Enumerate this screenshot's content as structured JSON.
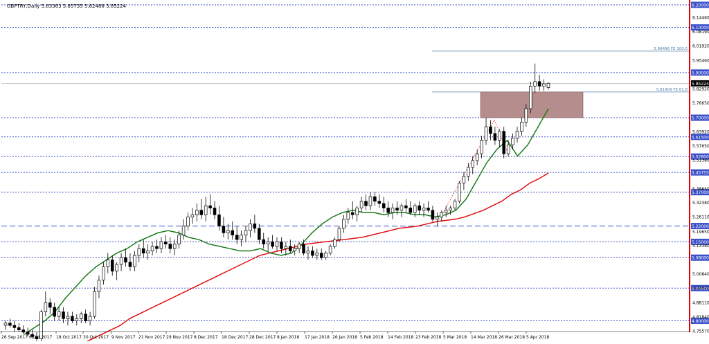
{
  "header": {
    "symbol_line": "GBPTRY,Daily  5.83363 5.85735 5.82488 5.85224"
  },
  "colors": {
    "bull_candle": "#ffffff",
    "bear_candle": "#000000",
    "candle_outline": "#000000",
    "ma_fast": "#1a7a1a",
    "ma_slow": "#e01010",
    "level_line": "#3a4fc8",
    "level_label_bg": "#3a4fc8",
    "box_fill": "#b58d8d",
    "fib_line": "#4a7fa8",
    "right_border": "#e00000"
  },
  "price_scale": {
    "labels": [
      "6.14460",
      "6.08190",
      "6.01920",
      "5.95460",
      "5.82920",
      "5.76650",
      "5.63920",
      "5.57650",
      "5.51380",
      "5.38650",
      "5.32380",
      "5.26110",
      "5.19650",
      "5.13380",
      "5.00840",
      "4.94570",
      "4.88110",
      "4.81840",
      "4.75570"
    ],
    "current_price": "5.85224"
  },
  "levels": [
    {
      "value": 6.2,
      "label": "6.20000"
    },
    {
      "value": 6.1,
      "label": "6.10000"
    },
    {
      "value": 5.9,
      "label": "5.90000"
    },
    {
      "value": 5.7,
      "label": "5.70000"
    },
    {
      "value": 5.615,
      "label": "5.61500"
    },
    {
      "value": 5.528,
      "label": "5.52800"
    },
    {
      "value": 5.45755,
      "label": "5.45755"
    },
    {
      "value": 5.37,
      "label": "5.37000"
    },
    {
      "value": 5.22,
      "label": "5.22000"
    },
    {
      "value": 5.15,
      "label": "5.15000"
    },
    {
      "value": 5.08,
      "label": "5.08000"
    },
    {
      "value": 4.945,
      "label": "4.94500"
    },
    {
      "value": 4.8,
      "label": "4.80000"
    }
  ],
  "fib_labels": [
    {
      "value": 5.99496,
      "label": "5.99496 FE 100.0"
    },
    {
      "value": 5.81409,
      "label": "5.81409 FE 61.8"
    }
  ],
  "time_labels": [
    "26 Sep 2017",
    "6 Oct 2017",
    "18 Oct 2017",
    "30 Oct 2017",
    "9 Nov 2017",
    "21 Nov 2017",
    "29 Nov 2017",
    "8 Dec 2017",
    "18 Dec 2017",
    "28 Dec 2017",
    "8 Jan 2018",
    "17 Jan 2018",
    "26 Jan 2018",
    "5 Feb 2018",
    "14 Feb 2018",
    "23 Feb 2018",
    "5 Mar 2018",
    "14 Mar 2018",
    "26 Mar 2018",
    "5 Apr 2018"
  ],
  "chart_data": {
    "type": "candlestick",
    "title": "GBPTRY,Daily",
    "ohlc_header": [
      5.83363,
      5.85735,
      5.82488,
      5.85224
    ],
    "ylim": [
      4.7557,
      6.2
    ],
    "x_labels": [
      "26 Sep 2017",
      "6 Oct 2017",
      "18 Oct 2017",
      "30 Oct 2017",
      "9 Nov 2017",
      "21 Nov 2017",
      "29 Nov 2017",
      "8 Dec 2017",
      "18 Dec 2017",
      "28 Dec 2017",
      "8 Jan 2018",
      "17 Jan 2018",
      "26 Jan 2018",
      "5 Feb 2018",
      "14 Feb 2018",
      "23 Feb 2018",
      "5 Mar 2018",
      "14 Mar 2018",
      "26 Mar 2018",
      "5 Apr 2018"
    ],
    "candles": [
      [
        4.78,
        4.8,
        4.76,
        4.79
      ],
      [
        4.79,
        4.81,
        4.77,
        4.78
      ],
      [
        4.78,
        4.8,
        4.75,
        4.77
      ],
      [
        4.77,
        4.79,
        4.75,
        4.76
      ],
      [
        4.76,
        4.78,
        4.74,
        4.75
      ],
      [
        4.75,
        4.77,
        4.73,
        4.74
      ],
      [
        4.74,
        4.76,
        4.72,
        4.73
      ],
      [
        4.73,
        4.75,
        4.71,
        4.72
      ],
      [
        4.72,
        4.85,
        4.71,
        4.84
      ],
      [
        4.84,
        4.93,
        4.82,
        4.88
      ],
      [
        4.88,
        4.9,
        4.83,
        4.86
      ],
      [
        4.86,
        4.88,
        4.8,
        4.82
      ],
      [
        4.82,
        4.86,
        4.8,
        4.84
      ],
      [
        4.84,
        4.86,
        4.79,
        4.81
      ],
      [
        4.81,
        4.84,
        4.78,
        4.82
      ],
      [
        4.82,
        4.84,
        4.79,
        4.8
      ],
      [
        4.8,
        4.83,
        4.78,
        4.81
      ],
      [
        4.81,
        4.84,
        4.79,
        4.83
      ],
      [
        4.83,
        4.85,
        4.79,
        4.8
      ],
      [
        4.8,
        4.84,
        4.78,
        4.82
      ],
      [
        4.82,
        4.95,
        4.81,
        4.93
      ],
      [
        4.93,
        5.0,
        4.9,
        4.98
      ],
      [
        4.98,
        5.06,
        4.96,
        5.04
      ],
      [
        5.04,
        5.1,
        5.01,
        5.07
      ],
      [
        5.07,
        5.09,
        5.0,
        5.02
      ],
      [
        5.02,
        5.06,
        4.98,
        5.05
      ],
      [
        5.05,
        5.1,
        5.02,
        5.08
      ],
      [
        5.08,
        5.12,
        5.04,
        5.06
      ],
      [
        5.06,
        5.1,
        5.02,
        5.04
      ],
      [
        5.04,
        5.11,
        5.02,
        5.09
      ],
      [
        5.09,
        5.14,
        5.06,
        5.12
      ],
      [
        5.12,
        5.16,
        5.08,
        5.1
      ],
      [
        5.1,
        5.14,
        5.07,
        5.11
      ],
      [
        5.11,
        5.15,
        5.09,
        5.13
      ],
      [
        5.13,
        5.16,
        5.1,
        5.12
      ],
      [
        5.12,
        5.17,
        5.1,
        5.15
      ],
      [
        5.15,
        5.18,
        5.12,
        5.14
      ],
      [
        5.14,
        5.17,
        5.1,
        5.12
      ],
      [
        5.12,
        5.16,
        5.09,
        5.14
      ],
      [
        5.14,
        5.2,
        5.12,
        5.18
      ],
      [
        5.18,
        5.25,
        5.16,
        5.22
      ],
      [
        5.22,
        5.28,
        5.2,
        5.26
      ],
      [
        5.26,
        5.3,
        5.23,
        5.27
      ],
      [
        5.27,
        5.32,
        5.24,
        5.29
      ],
      [
        5.29,
        5.34,
        5.25,
        5.27
      ],
      [
        5.27,
        5.35,
        5.24,
        5.31
      ],
      [
        5.31,
        5.36,
        5.27,
        5.3
      ],
      [
        5.3,
        5.33,
        5.25,
        5.27
      ],
      [
        5.27,
        5.31,
        5.2,
        5.22
      ],
      [
        5.22,
        5.26,
        5.17,
        5.19
      ],
      [
        5.19,
        5.23,
        5.16,
        5.2
      ],
      [
        5.2,
        5.24,
        5.16,
        5.18
      ],
      [
        5.18,
        5.22,
        5.14,
        5.16
      ],
      [
        5.16,
        5.2,
        5.13,
        5.18
      ],
      [
        5.18,
        5.22,
        5.15,
        5.2
      ],
      [
        5.2,
        5.25,
        5.17,
        5.23
      ],
      [
        5.23,
        5.27,
        5.19,
        5.21
      ],
      [
        5.21,
        5.23,
        5.14,
        5.16
      ],
      [
        5.16,
        5.19,
        5.12,
        5.14
      ],
      [
        5.14,
        5.17,
        5.11,
        5.15
      ],
      [
        5.15,
        5.18,
        5.12,
        5.13
      ],
      [
        5.13,
        5.17,
        5.11,
        5.15
      ],
      [
        5.15,
        5.17,
        5.1,
        5.12
      ],
      [
        5.12,
        5.15,
        5.09,
        5.13
      ],
      [
        5.13,
        5.16,
        5.1,
        5.11
      ],
      [
        5.11,
        5.14,
        5.09,
        5.12
      ],
      [
        5.12,
        5.15,
        5.1,
        5.14
      ],
      [
        5.14,
        5.16,
        5.09,
        5.1
      ],
      [
        5.1,
        5.13,
        5.07,
        5.11
      ],
      [
        5.11,
        5.13,
        5.08,
        5.09
      ],
      [
        5.09,
        5.12,
        5.07,
        5.1
      ],
      [
        5.1,
        5.12,
        5.07,
        5.08
      ],
      [
        5.08,
        5.11,
        5.07,
        5.1
      ],
      [
        5.1,
        5.14,
        5.09,
        5.13
      ],
      [
        5.13,
        5.17,
        5.12,
        5.16
      ],
      [
        5.16,
        5.22,
        5.15,
        5.21
      ],
      [
        5.21,
        5.27,
        5.19,
        5.25
      ],
      [
        5.25,
        5.3,
        5.23,
        5.28
      ],
      [
        5.28,
        5.33,
        5.25,
        5.27
      ],
      [
        5.27,
        5.31,
        5.24,
        5.3
      ],
      [
        5.3,
        5.35,
        5.28,
        5.33
      ],
      [
        5.33,
        5.36,
        5.29,
        5.31
      ],
      [
        5.31,
        5.37,
        5.29,
        5.35
      ],
      [
        5.35,
        5.37,
        5.31,
        5.33
      ],
      [
        5.33,
        5.36,
        5.3,
        5.32
      ],
      [
        5.32,
        5.35,
        5.28,
        5.3
      ],
      [
        5.3,
        5.33,
        5.26,
        5.28
      ],
      [
        5.28,
        5.32,
        5.25,
        5.3
      ],
      [
        5.3,
        5.33,
        5.27,
        5.29
      ],
      [
        5.29,
        5.32,
        5.26,
        5.31
      ],
      [
        5.31,
        5.34,
        5.28,
        5.3
      ],
      [
        5.3,
        5.33,
        5.27,
        5.28
      ],
      [
        5.28,
        5.32,
        5.26,
        5.31
      ],
      [
        5.31,
        5.33,
        5.27,
        5.29
      ],
      [
        5.29,
        5.32,
        5.26,
        5.3
      ],
      [
        5.3,
        5.33,
        5.28,
        5.29
      ],
      [
        5.29,
        5.31,
        5.24,
        5.25
      ],
      [
        5.25,
        5.28,
        5.22,
        5.26
      ],
      [
        5.26,
        5.29,
        5.24,
        5.28
      ],
      [
        5.28,
        5.31,
        5.26,
        5.29
      ],
      [
        5.29,
        5.31,
        5.27,
        5.3
      ],
      [
        5.3,
        5.34,
        5.29,
        5.33
      ],
      [
        5.33,
        5.42,
        5.32,
        5.41
      ],
      [
        5.41,
        5.46,
        5.38,
        5.44
      ],
      [
        5.44,
        5.5,
        5.42,
        5.48
      ],
      [
        5.48,
        5.53,
        5.45,
        5.51
      ],
      [
        5.51,
        5.56,
        5.49,
        5.54
      ],
      [
        5.54,
        5.62,
        5.52,
        5.6
      ],
      [
        5.6,
        5.7,
        5.58,
        5.66
      ],
      [
        5.66,
        5.69,
        5.6,
        5.63
      ],
      [
        5.63,
        5.66,
        5.58,
        5.6
      ],
      [
        5.6,
        5.65,
        5.57,
        5.64
      ],
      [
        5.64,
        5.66,
        5.52,
        5.54
      ],
      [
        5.54,
        5.6,
        5.53,
        5.58
      ],
      [
        5.58,
        5.63,
        5.56,
        5.61
      ],
      [
        5.61,
        5.66,
        5.59,
        5.64
      ],
      [
        5.64,
        5.7,
        5.62,
        5.68
      ],
      [
        5.68,
        5.76,
        5.66,
        5.74
      ],
      [
        5.74,
        5.86,
        5.72,
        5.84
      ],
      [
        5.84,
        5.94,
        5.81,
        5.86
      ],
      [
        5.86,
        5.89,
        5.82,
        5.84
      ],
      [
        5.84,
        5.87,
        5.82,
        5.85
      ],
      [
        5.83363,
        5.85735,
        5.82488,
        5.85224
      ]
    ],
    "series": [
      {
        "name": "",
        "values": [
          4.7,
          4.72,
          4.74,
          4.76,
          4.78,
          4.81,
          4.83,
          4.85,
          4.87,
          4.89,
          4.91,
          4.93,
          4.95,
          4.97,
          4.99,
          5.01,
          5.03,
          5.05,
          5.07,
          5.09,
          5.1,
          5.11,
          5.12,
          5.13,
          5.14,
          5.145,
          5.15,
          5.155,
          5.16,
          5.165,
          5.17,
          5.18,
          5.19,
          5.2,
          5.21,
          5.215,
          5.22,
          5.23,
          5.24,
          5.245,
          5.25,
          5.26,
          5.275,
          5.29,
          5.31,
          5.33,
          5.36,
          5.38,
          5.41,
          5.43,
          5.455
        ]
      },
      {
        "name": "",
        "values": [
          4.74,
          4.77,
          4.8,
          4.84,
          4.9,
          4.95,
          5.0,
          5.04,
          5.07,
          5.1,
          5.12,
          5.15,
          5.17,
          5.19,
          5.2,
          5.19,
          5.17,
          5.16,
          5.14,
          5.13,
          5.12,
          5.11,
          5.11,
          5.12,
          5.1,
          5.09,
          5.1,
          5.14,
          5.19,
          5.23,
          5.26,
          5.28,
          5.29,
          5.28,
          5.28,
          5.27,
          5.28,
          5.28,
          5.27,
          5.27,
          5.26,
          5.27,
          5.29,
          5.34,
          5.42,
          5.5,
          5.56,
          5.6,
          5.53,
          5.58,
          5.66,
          5.74
        ]
      }
    ]
  }
}
